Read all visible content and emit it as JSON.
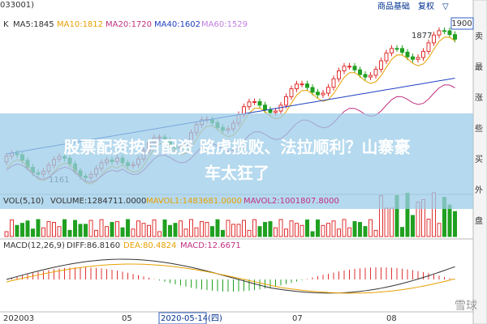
{
  "header": {
    "code": "033001)",
    "period": "K",
    "ma": [
      "MA5:1845",
      "MA10:1812",
      "MA20:1720",
      "MA40:1602",
      "MA60:1529"
    ],
    "buttons": [
      "商品基础",
      "复权",
      "▽"
    ],
    "price_box": "1900"
  },
  "side": [
    "卖",
    "最",
    "涨",
    "些",
    "买",
    "外",
    "盘"
  ],
  "annotations": {
    "high": "1877",
    "low": "1161"
  },
  "banner": {
    "line1": "股票配资按月配资 路虎揽败、法拉顺利？山寨豪",
    "line2": "车太狂了"
  },
  "volume": {
    "label": "VOL(5,10)",
    "volume": "VOLUME:1284711.0000",
    "mavol1": "MAVOL1:1483681.0000",
    "mavol2": "MAVOL2:1001807.8000"
  },
  "macd": {
    "label": "MACD(12,26,9)",
    "diff": "DIFF:86.8160",
    "dea": "DEA:80.4824",
    "macd": "MACD:12.6671"
  },
  "x_axis": [
    "202003",
    "05",
    "2020-05-14(四)",
    "07",
    "08"
  ],
  "watermark": "雪球"
}
